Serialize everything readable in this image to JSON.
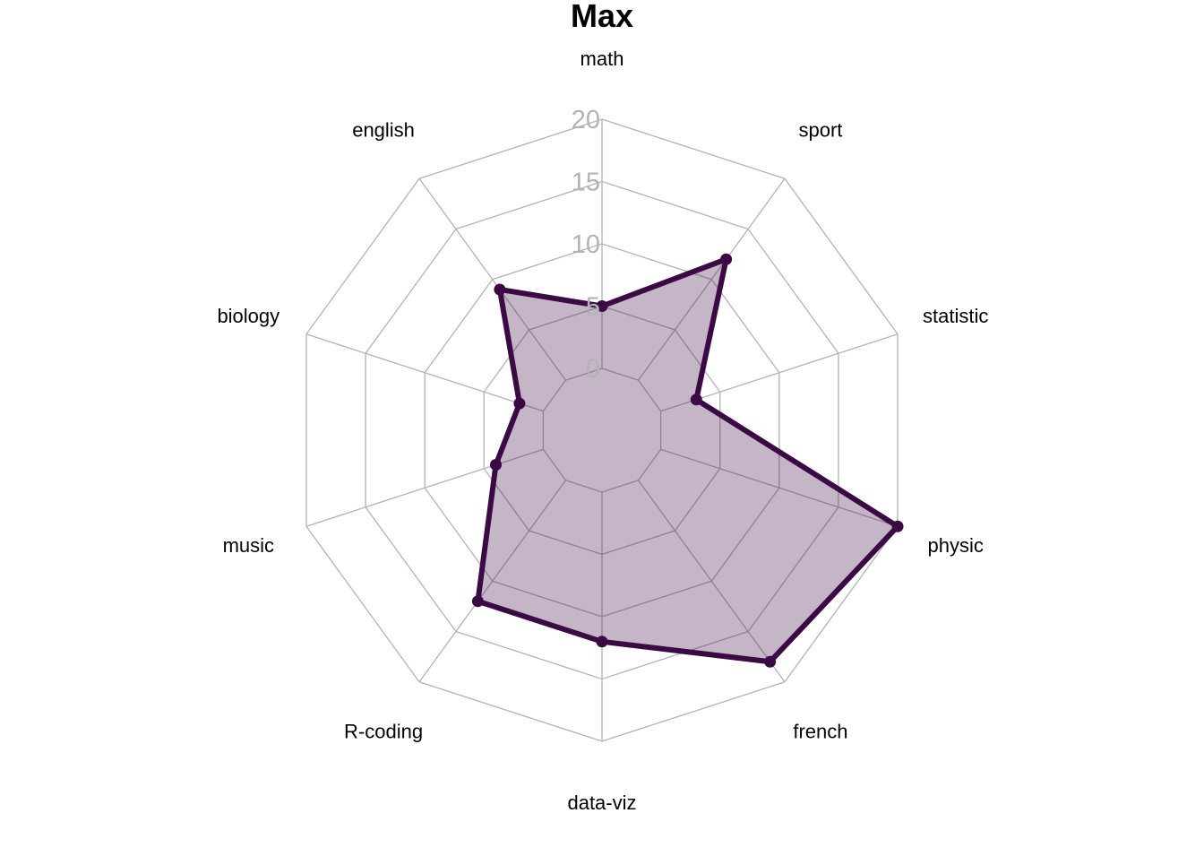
{
  "chart_data": {
    "type": "radar",
    "title": "Max",
    "axes": [
      "math",
      "sport",
      "statistic",
      "physic",
      "french",
      "data-viz",
      "R-coding",
      "music",
      "biology",
      "english"
    ],
    "series": [
      {
        "values": [
          5,
          12,
          3,
          20,
          18,
          12,
          12,
          4,
          2,
          9
        ]
      }
    ],
    "range": [
      0,
      20
    ],
    "ticks": [
      0,
      5,
      10,
      15,
      20
    ],
    "tick_labels": [
      "0",
      "5",
      "10",
      "15",
      "20"
    ],
    "grid_levels": 5,
    "colors": {
      "series_line": "#3b0a45",
      "series_fill": "rgba(59,10,69,0.30)",
      "grid": "#b3b3b3",
      "tick_text": "#b3b3b3",
      "label_text": "#000000"
    }
  }
}
